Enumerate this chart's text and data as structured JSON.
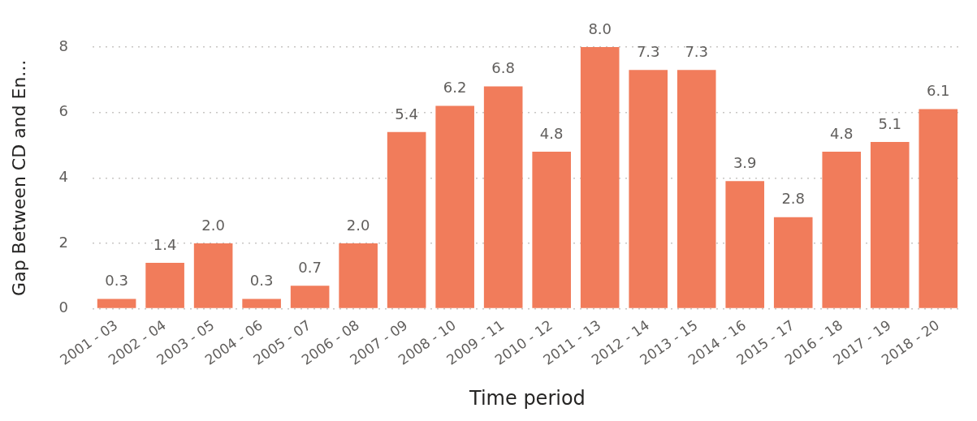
{
  "chart_data": {
    "type": "bar",
    "xlabel": "Time period",
    "ylabel": "Gap Between CD and En...",
    "categories": [
      "2001 - 03",
      "2002 - 04",
      "2003 - 05",
      "2004 - 06",
      "2005 - 07",
      "2006 - 08",
      "2007 - 09",
      "2008 - 10",
      "2009 - 11",
      "2010 - 12",
      "2011 - 13",
      "2012 - 14",
      "2013 - 15",
      "2014 - 16",
      "2015 - 17",
      "2016 - 18",
      "2017 - 19",
      "2018 - 20"
    ],
    "values": [
      0.3,
      1.4,
      2.0,
      0.3,
      0.7,
      2.0,
      5.4,
      6.2,
      6.8,
      4.8,
      8.0,
      7.3,
      7.3,
      3.9,
      2.8,
      4.8,
      5.1,
      6.1
    ],
    "value_labels": [
      "0.3",
      "1.4",
      "2.0",
      "0.3",
      "0.7",
      "2.0",
      "5.4",
      "6.2",
      "6.8",
      "4.8",
      "8.0",
      "7.3",
      "7.3",
      "3.9",
      "2.8",
      "4.8",
      "5.1",
      "6.1"
    ],
    "color": "#f17c5b",
    "ylim": [
      0,
      8
    ],
    "yticks": [
      0,
      2,
      4,
      6,
      8
    ],
    "grid": "y"
  }
}
